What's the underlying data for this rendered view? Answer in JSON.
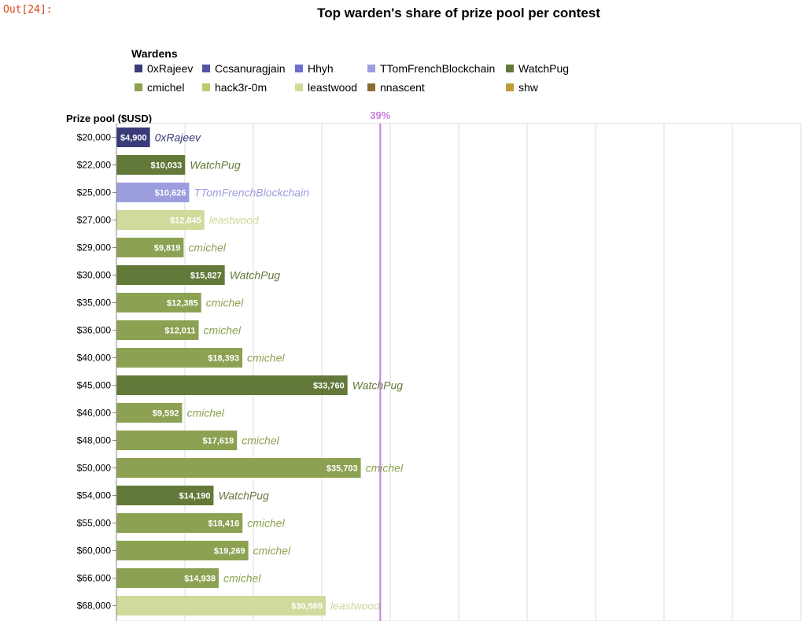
{
  "notebook": {
    "out_prompt": "Out[24]:"
  },
  "colors": {
    "0xRajeev": "#393b79",
    "Ccsanuragjain": "#5254a3",
    "Hhyh": "#6b6ecf",
    "TTomFrenchBlockchain": "#9c9ede",
    "WatchPug": "#637939",
    "cmichel": "#8ca252",
    "hack3r-0m": "#b5cf6b",
    "leastwood": "#cedb9c",
    "nnascent": "#8c6d31",
    "shw": "#bd9e39",
    "rule": "#c77fde",
    "grid": "#dddddd"
  },
  "chart_data": {
    "type": "bar",
    "orientation": "horizontal",
    "title": "Top warden's share of prize pool per contest",
    "ylabel": "Prize pool ($USD)",
    "xlim": [
      0,
      100000
    ],
    "grid": true,
    "legend": {
      "title": "Wardens",
      "placement": "top",
      "entries": [
        "0xRajeev",
        "Ccsanuragjain",
        "Hhyh",
        "TTomFrenchBlockchain",
        "WatchPug",
        "cmichel",
        "hack3r-0m",
        "leastwood",
        "nnascent",
        "shw"
      ]
    },
    "rule": {
      "value_pct": 39,
      "label": "39%"
    },
    "rows": [
      {
        "category": "$20,000",
        "pool": 20000,
        "value": 4900,
        "value_label": "$4,900",
        "warden": "0xRajeev"
      },
      {
        "category": "$22,000",
        "pool": 22000,
        "value": 10033,
        "value_label": "$10,033",
        "warden": "WatchPug"
      },
      {
        "category": "$25,000",
        "pool": 25000,
        "value": 10626,
        "value_label": "$10,626",
        "warden": "TTomFrenchBlockchain"
      },
      {
        "category": "$27,000",
        "pool": 27000,
        "value": 12845,
        "value_label": "$12,845",
        "warden": "leastwood"
      },
      {
        "category": "$29,000",
        "pool": 29000,
        "value": 9819,
        "value_label": "$9,819",
        "warden": "cmichel"
      },
      {
        "category": "$30,000",
        "pool": 30000,
        "value": 15827,
        "value_label": "$15,827",
        "warden": "WatchPug"
      },
      {
        "category": "$35,000",
        "pool": 35000,
        "value": 12385,
        "value_label": "$12,385",
        "warden": "cmichel"
      },
      {
        "category": "$36,000",
        "pool": 36000,
        "value": 12011,
        "value_label": "$12,011",
        "warden": "cmichel"
      },
      {
        "category": "$40,000",
        "pool": 40000,
        "value": 18393,
        "value_label": "$18,393",
        "warden": "cmichel"
      },
      {
        "category": "$45,000",
        "pool": 45000,
        "value": 33760,
        "value_label": "$33,760",
        "warden": "WatchPug"
      },
      {
        "category": "$46,000",
        "pool": 46000,
        "value": 9592,
        "value_label": "$9,592",
        "warden": "cmichel"
      },
      {
        "category": "$48,000",
        "pool": 48000,
        "value": 17618,
        "value_label": "$17,618",
        "warden": "cmichel"
      },
      {
        "category": "$50,000",
        "pool": 50000,
        "value": 35703,
        "value_label": "$35,703",
        "warden": "cmichel"
      },
      {
        "category": "$54,000",
        "pool": 54000,
        "value": 14190,
        "value_label": "$14,190",
        "warden": "WatchPug"
      },
      {
        "category": "$55,000",
        "pool": 55000,
        "value": 18416,
        "value_label": "$18,416",
        "warden": "cmichel"
      },
      {
        "category": "$60,000",
        "pool": 60000,
        "value": 19269,
        "value_label": "$19,269",
        "warden": "cmichel"
      },
      {
        "category": "$66,000",
        "pool": 66000,
        "value": 14938,
        "value_label": "$14,938",
        "warden": "cmichel"
      },
      {
        "category": "$68,000",
        "pool": 68000,
        "value": 30569,
        "value_label": "$30,569",
        "warden": "leastwood"
      }
    ]
  }
}
